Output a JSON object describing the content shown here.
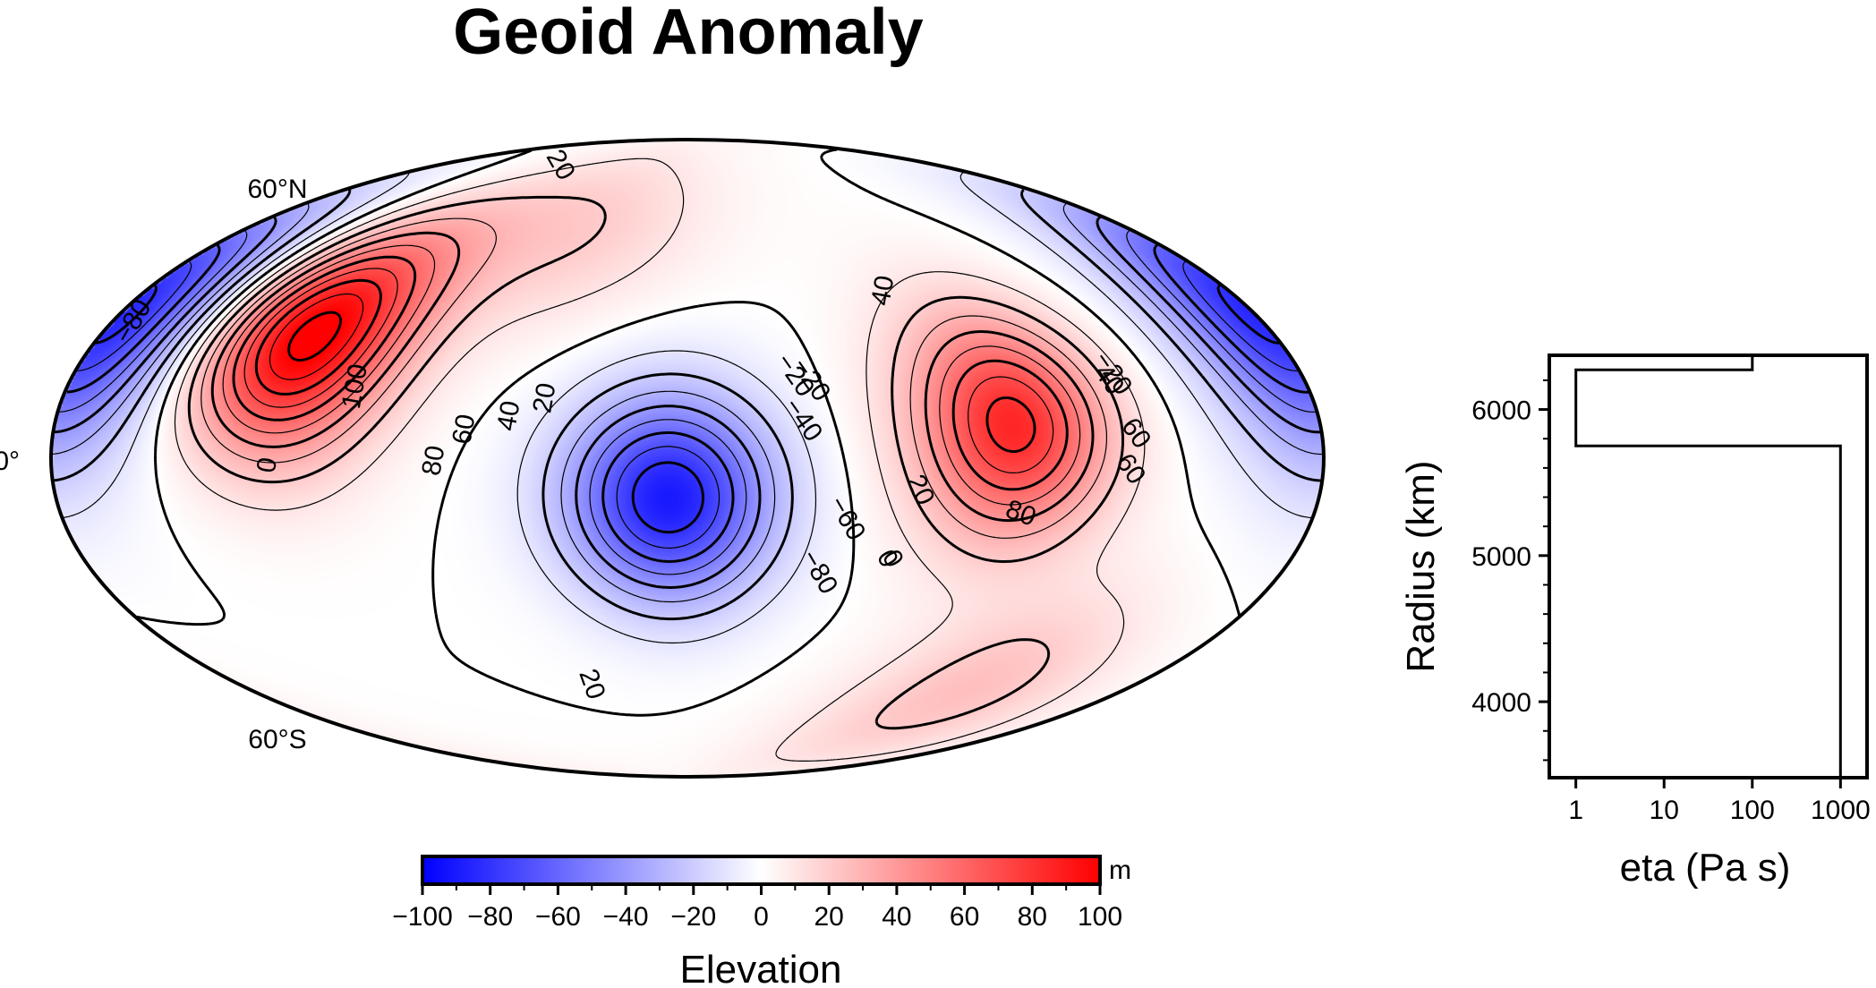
{
  "chart_data": [
    {
      "type": "heatmap",
      "title": "Geoid Anomaly",
      "projection": "hammer",
      "lat_labels": [
        "60°N",
        "0°",
        "60°S"
      ],
      "contour_labels": [
        "-80",
        "20",
        "100",
        "-20",
        "40",
        "-40",
        "-60",
        "40",
        "20",
        "60",
        "80",
        "0",
        "20",
        "40",
        "60",
        "80",
        "-80",
        "0",
        "0",
        "20",
        "60",
        "-20",
        "-20"
      ],
      "colorbar": {
        "label": "Elevation",
        "unit": "m",
        "range": [
          -100,
          100
        ],
        "tick_labels": [
          "−100",
          "−80",
          "−60",
          "−40",
          "−20",
          "0",
          "20",
          "40",
          "60",
          "80",
          "100"
        ],
        "colors": [
          "#0000ff",
          "#ffffff",
          "#ff0000"
        ]
      },
      "anomalies": [
        {
          "lon": -110,
          "lat": 28,
          "value": 105
        },
        {
          "lon": -5,
          "lat": -10,
          "value": -90
        },
        {
          "lon": 85,
          "lat": 8,
          "value": 85
        },
        {
          "lon": -175,
          "lat": 28,
          "value": -60
        },
        {
          "lon": 170,
          "lat": 25,
          "value": -30
        },
        {
          "lon": 120,
          "lat": -55,
          "value": 25
        },
        {
          "lon": -50,
          "lat": 60,
          "value": 20
        }
      ]
    },
    {
      "type": "line",
      "xlabel": "eta (Pa s)",
      "ylabel": "Radius (km)",
      "xscale": "log",
      "xlim": [
        0.5,
        2000
      ],
      "ylim": [
        3480,
        6371
      ],
      "x_tick_labels": [
        "1",
        "10",
        "100",
        "1000"
      ],
      "y_tick_labels": [
        "4000",
        "5000",
        "6000"
      ],
      "x": [
        100,
        100,
        1,
        1,
        1000,
        1000
      ],
      "y": [
        6371,
        6271,
        6271,
        5751,
        5751,
        3480
      ]
    }
  ]
}
